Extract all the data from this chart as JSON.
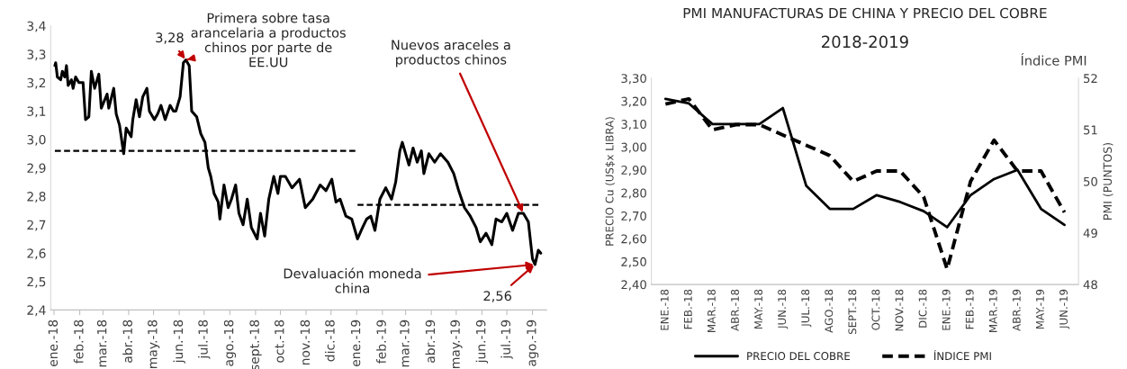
{
  "chart_data": [
    {
      "type": "line",
      "legend": false,
      "grid": false,
      "x": [
        "2018-01-02",
        "2018-01-03",
        "2018-01-05",
        "2018-01-09",
        "2018-01-11",
        "2018-01-14",
        "2018-01-16",
        "2018-01-18",
        "2018-01-22",
        "2018-01-24",
        "2018-01-27",
        "2018-01-31",
        "2018-02-05",
        "2018-02-08",
        "2018-02-12",
        "2018-02-15",
        "2018-02-19",
        "2018-02-24",
        "2018-02-27",
        "2018-03-06",
        "2018-03-08",
        "2018-03-14",
        "2018-03-17",
        "2018-03-21",
        "2018-03-26",
        "2018-03-29",
        "2018-04-04",
        "2018-04-06",
        "2018-04-10",
        "2018-04-14",
        "2018-04-18",
        "2018-04-23",
        "2018-04-26",
        "2018-05-02",
        "2018-05-06",
        "2018-05-10",
        "2018-05-15",
        "2018-05-21",
        "2018-05-25",
        "2018-05-28",
        "2018-06-02",
        "2018-06-06",
        "2018-06-09",
        "2018-06-13",
        "2018-06-16",
        "2018-06-22",
        "2018-06-27",
        "2018-07-02",
        "2018-07-06",
        "2018-07-09",
        "2018-07-13",
        "2018-07-18",
        "2018-07-20",
        "2018-07-25",
        "2018-07-30",
        "2018-08-03",
        "2018-08-08",
        "2018-08-12",
        "2018-08-17",
        "2018-08-22",
        "2018-08-27",
        "2018-09-03",
        "2018-09-07",
        "2018-09-12",
        "2018-09-17",
        "2018-09-23",
        "2018-09-28",
        "2018-10-01",
        "2018-10-07",
        "2018-10-15",
        "2018-10-24",
        "2018-10-31",
        "2018-11-09",
        "2018-11-18",
        "2018-11-25",
        "2018-12-02",
        "2018-12-07",
        "2018-12-12",
        "2018-12-19",
        "2018-12-26",
        "2019-01-02",
        "2019-01-08",
        "2019-01-13",
        "2019-01-18",
        "2019-01-23",
        "2019-01-29",
        "2019-02-05",
        "2019-02-12",
        "2019-02-17",
        "2019-02-22",
        "2019-02-25",
        "2019-03-05",
        "2019-03-10",
        "2019-03-15",
        "2019-03-20",
        "2019-03-23",
        "2019-03-29",
        "2019-04-05",
        "2019-04-12",
        "2019-04-21",
        "2019-04-28",
        "2019-05-04",
        "2019-05-11",
        "2019-05-18",
        "2019-05-25",
        "2019-05-30",
        "2019-06-06",
        "2019-06-13",
        "2019-06-18",
        "2019-06-25",
        "2019-07-01",
        "2019-07-08",
        "2019-07-15",
        "2019-07-21",
        "2019-07-27",
        "2019-08-01",
        "2019-08-04",
        "2019-08-08",
        "2019-08-11"
      ],
      "series": [
        {
          "color": "#000000",
          "values": [
            3.26,
            3.27,
            3.22,
            3.21,
            3.24,
            3.22,
            3.26,
            3.19,
            3.21,
            3.18,
            3.22,
            3.2,
            3.2,
            3.07,
            3.08,
            3.24,
            3.18,
            3.23,
            3.11,
            3.16,
            3.11,
            3.18,
            3.09,
            3.05,
            2.95,
            3.04,
            3.01,
            3.07,
            3.14,
            3.08,
            3.15,
            3.18,
            3.1,
            3.07,
            3.09,
            3.12,
            3.07,
            3.12,
            3.1,
            3.1,
            3.15,
            3.27,
            3.28,
            3.26,
            3.1,
            3.08,
            3.02,
            2.99,
            2.9,
            2.87,
            2.81,
            2.78,
            2.72,
            2.84,
            2.76,
            2.79,
            2.84,
            2.74,
            2.7,
            2.79,
            2.69,
            2.65,
            2.74,
            2.66,
            2.79,
            2.87,
            2.81,
            2.87,
            2.87,
            2.83,
            2.86,
            2.76,
            2.79,
            2.84,
            2.82,
            2.86,
            2.78,
            2.79,
            2.73,
            2.72,
            2.65,
            2.69,
            2.72,
            2.73,
            2.68,
            2.79,
            2.83,
            2.79,
            2.85,
            2.96,
            2.99,
            2.91,
            2.97,
            2.92,
            2.96,
            2.88,
            2.95,
            2.92,
            2.95,
            2.92,
            2.88,
            2.82,
            2.76,
            2.73,
            2.69,
            2.64,
            2.67,
            2.63,
            2.72,
            2.71,
            2.74,
            2.68,
            2.74,
            2.74,
            2.71,
            2.58,
            2.56,
            2.61,
            2.6
          ]
        },
        {
          "type": "line",
          "color": "#000000",
          "line_style": "dashed",
          "x": [
            "2018-01-02",
            "2019-01-02"
          ],
          "values": [
            2.96,
            2.96
          ]
        },
        {
          "type": "line",
          "color": "#000000",
          "line_style": "dashed",
          "x": [
            "2019-01-02",
            "2019-08-11"
          ],
          "values": [
            2.77,
            2.77
          ]
        }
      ],
      "xlim": [
        "2017-12-28",
        "2019-08-18"
      ],
      "xticks": [
        {
          "value": "2018-01-01",
          "label": "ene.-18"
        },
        {
          "value": "2018-02-01",
          "label": "feb.-18"
        },
        {
          "value": "2018-03-01",
          "label": "mar.-18"
        },
        {
          "value": "2018-04-01",
          "label": "abr.-18"
        },
        {
          "value": "2018-05-01",
          "label": "may.-18"
        },
        {
          "value": "2018-06-01",
          "label": "jun.-18"
        },
        {
          "value": "2018-07-01",
          "label": "jul.-18"
        },
        {
          "value": "2018-08-01",
          "label": "ago.-18"
        },
        {
          "value": "2018-09-01",
          "label": "sept.-18"
        },
        {
          "value": "2018-10-01",
          "label": "oct.-18"
        },
        {
          "value": "2018-11-01",
          "label": "nov.-18"
        },
        {
          "value": "2018-12-01",
          "label": "dic.-18"
        },
        {
          "value": "2019-01-01",
          "label": "ene.-19"
        },
        {
          "value": "2019-02-01",
          "label": "feb.-19"
        },
        {
          "value": "2019-03-01",
          "label": "mar.-19"
        },
        {
          "value": "2019-04-01",
          "label": "abr.-19"
        },
        {
          "value": "2019-05-01",
          "label": "may.-19"
        },
        {
          "value": "2019-06-01",
          "label": "jun.-19"
        },
        {
          "value": "2019-07-01",
          "label": "jul.-19"
        },
        {
          "value": "2019-08-01",
          "label": "ago.-19"
        }
      ],
      "ylim": [
        2.4,
        3.4
      ],
      "yticks": [
        {
          "value": 2.4,
          "label": "2,4"
        },
        {
          "value": 2.5,
          "label": "2,5"
        },
        {
          "value": 2.6,
          "label": "2,6"
        },
        {
          "value": 2.7,
          "label": "2,7"
        },
        {
          "value": 2.8,
          "label": "2,8"
        },
        {
          "value": 2.9,
          "label": "2,9"
        },
        {
          "value": 3.0,
          "label": "3,0"
        },
        {
          "value": 3.1,
          "label": "3,1"
        },
        {
          "value": 3.2,
          "label": "3,2"
        },
        {
          "value": 3.3,
          "label": "3,3"
        },
        {
          "value": 3.4,
          "label": "3,4"
        }
      ],
      "annotations": [
        {
          "text": "3,28",
          "x": "2018-06-09",
          "y": 3.28
        },
        {
          "text": "Primera sobre tasa\narancelaria a productos\nchinos por parte de\nEE.UU",
          "x": "2018-06-09",
          "y": 3.28
        },
        {
          "text": "Nuevos araceles a\nproductos chinos",
          "x": "2019-07-21",
          "y": 2.74
        },
        {
          "text": "Devaluación moneda\nchina",
          "x": "2019-08-04",
          "y": 2.56
        },
        {
          "text": "2,56",
          "x": "2019-08-04",
          "y": 2.56
        }
      ]
    },
    {
      "type": "line",
      "title": "PMI MANUFACTURAS DE CHINA Y PRECIO DEL COBRE",
      "subtitle": "2018-2019",
      "ylabel": "PRECIO Cu (US$x LIBRA)",
      "y2label": "PMI (PUNTOS)",
      "legend": "bottom",
      "grid": false,
      "categories": [
        "ENE.-18",
        "FEB.-18",
        "MAR.-18",
        "ABR.-18",
        "MAY.-18",
        "JUN.-18",
        "JUL.-18",
        "AGO.-18",
        "SEPT.-18",
        "OCT.-18",
        "NOV.-18",
        "DIC.-18",
        "ENE.-19",
        "FEB.-19",
        "MAR.-19",
        "ABR.-19",
        "MAY.-19",
        "JUN.-19"
      ],
      "series": [
        {
          "name": "PRECIO DEL COBRE",
          "color": "#000000",
          "line_style": "solid",
          "values": [
            3.21,
            3.19,
            3.1,
            3.1,
            3.1,
            3.17,
            2.83,
            2.73,
            2.73,
            2.79,
            2.76,
            2.72,
            2.65,
            2.79,
            2.86,
            2.9,
            2.73,
            2.66
          ]
        },
        {
          "name": "ÍNDICE PMI",
          "color": "#000000",
          "line_style": "dashed",
          "axis": "y2",
          "values": [
            51.5,
            51.6,
            51.0,
            51.1,
            51.1,
            50.9,
            50.7,
            50.5,
            50.0,
            50.2,
            50.2,
            49.7,
            48.3,
            50.0,
            50.8,
            50.2,
            50.2,
            49.4
          ]
        }
      ],
      "ylim": [
        2.4,
        3.3
      ],
      "yticks": [
        {
          "value": 2.4,
          "label": "2,40"
        },
        {
          "value": 2.5,
          "label": "2,50"
        },
        {
          "value": 2.6,
          "label": "2,60"
        },
        {
          "value": 2.7,
          "label": "2,70"
        },
        {
          "value": 2.8,
          "label": "2,80"
        },
        {
          "value": 2.9,
          "label": "2,90"
        },
        {
          "value": 3.0,
          "label": "3,00"
        },
        {
          "value": 3.1,
          "label": "3,10"
        },
        {
          "value": 3.2,
          "label": "3,20"
        },
        {
          "value": 3.3,
          "label": "3,30"
        }
      ],
      "y2lim": [
        48,
        52
      ],
      "y2ticks": [
        48,
        49,
        50,
        51,
        52
      ],
      "annotations": [
        "Índice PMI"
      ]
    }
  ]
}
